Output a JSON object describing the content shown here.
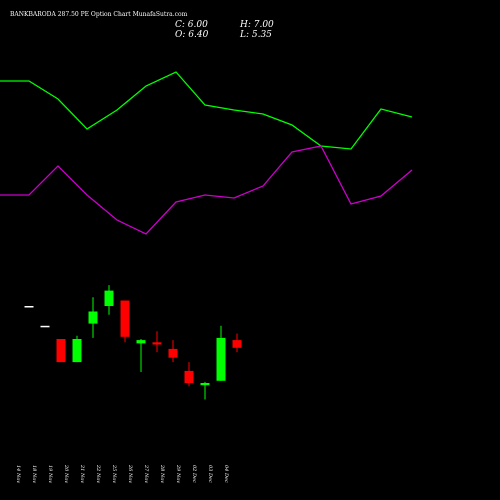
{
  "header": {
    "title": "BANKBARODA 287.50  PE Option  Chart MunafaSutra.com",
    "close": "C: 6.00",
    "open": "O: 6.40",
    "high": "H: 7.00",
    "low": "L: 5.35"
  },
  "colors": {
    "background": "#000000",
    "up": "#00ff00",
    "down": "#ff0000",
    "line_green": "#00ff00",
    "line_magenta": "#cc00cc",
    "neutral": "#ffffff"
  },
  "chart_data": {
    "type": "candlestick",
    "price_range": [
      4.0,
      14.0
    ],
    "x": [
      "14 Nov",
      "18 Nov",
      "19 Nov",
      "20 Nov",
      "21 Nov",
      "22 Nov",
      "25 Nov",
      "26 Nov",
      "27 Nov",
      "28 Nov",
      "29 Nov",
      "02 Dec",
      "03 Dec",
      "04 Dec"
    ],
    "candles": [
      {
        "open": 11.0,
        "high": 11.0,
        "low": 11.0,
        "close": 11.0,
        "color": "neutral"
      },
      {
        "open": 10.1,
        "high": 10.1,
        "low": 10.1,
        "close": 10.1,
        "color": "neutral"
      },
      {
        "open": 9.5,
        "high": 9.5,
        "low": 8.45,
        "close": 8.45,
        "color": "down"
      },
      {
        "open": 8.45,
        "high": 9.65,
        "low": 8.45,
        "close": 9.5,
        "color": "up"
      },
      {
        "open": 10.2,
        "high": 11.4,
        "low": 9.55,
        "close": 10.75,
        "color": "up"
      },
      {
        "open": 11.0,
        "high": 11.95,
        "low": 10.6,
        "close": 11.7,
        "color": "up"
      },
      {
        "open": 11.25,
        "high": 11.25,
        "low": 9.35,
        "close": 9.6,
        "color": "down"
      },
      {
        "open": 9.3,
        "high": 9.5,
        "low": 8.0,
        "close": 9.45,
        "color": "up"
      },
      {
        "open": 9.35,
        "high": 9.85,
        "low": 8.9,
        "close": 9.25,
        "color": "down"
      },
      {
        "open": 9.05,
        "high": 9.45,
        "low": 8.45,
        "close": 8.65,
        "color": "down"
      },
      {
        "open": 8.05,
        "high": 8.45,
        "low": 7.35,
        "close": 7.5,
        "color": "down"
      },
      {
        "open": 7.4,
        "high": 7.55,
        "low": 6.75,
        "close": 7.5,
        "color": "up"
      },
      {
        "open": 7.6,
        "high": 10.1,
        "low": 7.6,
        "close": 9.55,
        "color": "up"
      },
      {
        "open": 9.45,
        "high": 9.75,
        "low": 8.9,
        "close": 9.1,
        "color": "down"
      }
    ],
    "line_green": [
      81,
      81,
      99,
      129,
      110,
      86,
      72,
      105,
      110,
      114,
      125,
      146,
      149,
      109,
      117
    ],
    "line_magenta": [
      195,
      195,
      166,
      195,
      220,
      234,
      202,
      195,
      198,
      186,
      152,
      146,
      204,
      196,
      170
    ]
  }
}
